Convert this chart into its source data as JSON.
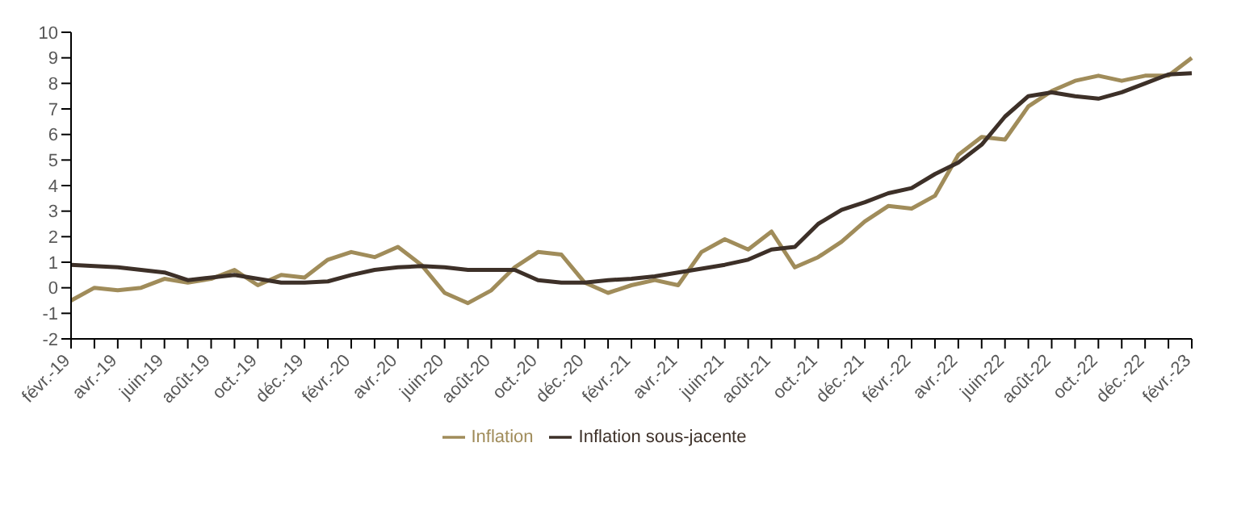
{
  "chart_data": {
    "type": "line",
    "categories": [
      "févr.-19",
      null,
      "avr.-19",
      null,
      "juin-19",
      null,
      "août-19",
      null,
      "oct.-19",
      null,
      "déc.-19",
      null,
      "févr.-20",
      null,
      "avr.-20",
      null,
      "juin-20",
      null,
      "août-20",
      null,
      "oct.-20",
      null,
      "déc.-20",
      null,
      "févr.-21",
      null,
      "avr.-21",
      null,
      "juin-21",
      null,
      "août-21",
      null,
      "oct.-21",
      null,
      "déc.-21",
      null,
      "févr.-22",
      null,
      "avr.-22",
      null,
      "juin-22",
      null,
      "août-22",
      null,
      "oct.-22",
      null,
      "déc.-22",
      null,
      "févr.-23"
    ],
    "series": [
      {
        "name": "Inflation",
        "color": "#a08c5a",
        "values": [
          -0.5,
          0,
          -0.1,
          0,
          0.35,
          0.2,
          0.35,
          0.7,
          0.1,
          0.5,
          0.4,
          1.1,
          1.4,
          1.2,
          1.6,
          0.9,
          -0.2,
          -0.6,
          -0.1,
          0.8,
          1.4,
          1.3,
          0.2,
          -0.2,
          0.1,
          0.3,
          0.1,
          1.4,
          1.9,
          1.5,
          2.2,
          0.8,
          1.2,
          1.8,
          2.6,
          3.2,
          3.1,
          3.6,
          5.2,
          5.9,
          5.8,
          7.1,
          7.7,
          8.1,
          8.3,
          8.1,
          8.3,
          8.3,
          9.0
        ]
      },
      {
        "name": "Inflation sous-jacente",
        "color": "#3d3028",
        "values": [
          0.9,
          0.85,
          0.8,
          0.7,
          0.6,
          0.3,
          0.4,
          0.5,
          0.35,
          0.2,
          0.2,
          0.25,
          0.5,
          0.7,
          0.8,
          0.85,
          0.8,
          0.7,
          0.7,
          0.7,
          0.3,
          0.2,
          0.2,
          0.3,
          0.35,
          0.45,
          0.6,
          0.75,
          0.9,
          1.1,
          1.5,
          1.6,
          2.5,
          3.05,
          3.35,
          3.7,
          3.9,
          4.45,
          4.9,
          5.6,
          6.7,
          7.5,
          7.65,
          7.5,
          7.4,
          7.65,
          8.0,
          8.35,
          8.4
        ]
      }
    ],
    "ylim": [
      -2,
      10
    ],
    "yticks": [
      -2,
      -1,
      0,
      1,
      2,
      3,
      4,
      5,
      6,
      7,
      8,
      9,
      10
    ],
    "grid": false,
    "legend": "bottom",
    "marker": "none",
    "line_style": "solid"
  }
}
